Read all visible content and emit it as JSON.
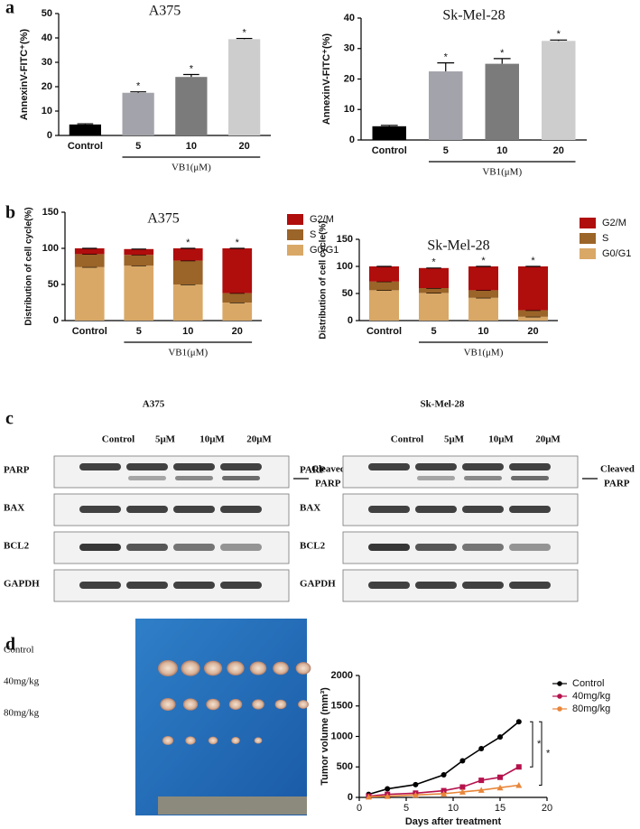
{
  "panel_labels": [
    "a",
    "b",
    "c",
    "d"
  ],
  "chart_data": [
    {
      "type": "bar",
      "title": "A375",
      "ylabel": "AnnexinV-FITC⁺(%)",
      "categories": [
        "Control",
        "5",
        "10",
        "20"
      ],
      "group_label": "VB1(μM)",
      "values": [
        4.5,
        17.5,
        24,
        39.5
      ],
      "errors": [
        0.3,
        0.4,
        1,
        0.3
      ],
      "colors": [
        "#000000",
        "#a3a3ab",
        "#7b7b7b",
        "#cdcdcd"
      ],
      "annotations": [
        null,
        "*",
        "*",
        "*"
      ],
      "ylim": [
        0,
        50
      ],
      "yticks": [
        0,
        10,
        20,
        30,
        40,
        50
      ]
    },
    {
      "type": "bar",
      "title": "Sk-Mel-28",
      "ylabel": "AnnexinV-FITC⁺(%)",
      "categories": [
        "Control",
        "5",
        "10",
        "20"
      ],
      "group_label": "VB1(μM)",
      "values": [
        4.5,
        22.5,
        25,
        32.5
      ],
      "errors": [
        0.3,
        2.8,
        1.7,
        0.3
      ],
      "colors": [
        "#000000",
        "#a3a3ab",
        "#7b7b7b",
        "#cdcdcd"
      ],
      "annotations": [
        null,
        "*",
        "*",
        "*"
      ],
      "ylim": [
        0,
        40
      ],
      "yticks": [
        0,
        10,
        20,
        30,
        40
      ]
    },
    {
      "type": "stacked_bar",
      "title": "A375",
      "ylabel": "Distribution of cell cycle(%)",
      "categories": [
        "Control",
        "5",
        "10",
        "20"
      ],
      "group_label": "VB1(μM)",
      "series": [
        {
          "name": "G0/G1",
          "color": "#d9a867",
          "values": [
            74,
            76,
            50,
            25
          ]
        },
        {
          "name": "S",
          "color": "#9b6428",
          "values": [
            18,
            15,
            33,
            13
          ]
        },
        {
          "name": "G2/M",
          "color": "#b00d0d",
          "values": [
            8,
            8,
            17,
            62
          ]
        }
      ],
      "annotations": [
        null,
        null,
        "*",
        "*"
      ],
      "ylim": [
        0,
        150
      ],
      "yticks": [
        0,
        50,
        100,
        150
      ]
    },
    {
      "type": "stacked_bar",
      "title": "Sk-Mel-28",
      "ylabel": "Distribution of cell cycle(%)",
      "categories": [
        "Control",
        "5",
        "10",
        "20"
      ],
      "group_label": "VB1(μM)",
      "series": [
        {
          "name": "G0/G1",
          "color": "#d9a867",
          "values": [
            56,
            51,
            42,
            7
          ]
        },
        {
          "name": "S",
          "color": "#9b6428",
          "values": [
            16,
            9,
            14,
            12
          ]
        },
        {
          "name": "G2/M",
          "color": "#b00d0d",
          "values": [
            28,
            37,
            44,
            81
          ]
        }
      ],
      "annotations": [
        null,
        "*",
        "*",
        "*"
      ],
      "ylim": [
        0,
        150
      ],
      "yticks": [
        0,
        50,
        100,
        150
      ]
    },
    {
      "type": "line",
      "ylabel": "Tumor volume (mm³)",
      "xlabel": "Days after treatment",
      "x": [
        1,
        3,
        6,
        9,
        11,
        13,
        15,
        17
      ],
      "series": [
        {
          "name": "Control",
          "color": "#000000",
          "values": [
            50,
            140,
            210,
            370,
            600,
            800,
            990,
            1240
          ]
        },
        {
          "name": "40mg/kg",
          "color": "#b5124d",
          "values": [
            20,
            50,
            70,
            110,
            170,
            280,
            330,
            500
          ]
        },
        {
          "name": "80mg/kg",
          "color": "#e8863a",
          "values": [
            10,
            20,
            40,
            60,
            90,
            120,
            160,
            200
          ]
        }
      ],
      "annotations": [
        "*",
        "*"
      ],
      "xlim": [
        0,
        20
      ],
      "xticks": [
        0,
        5,
        10,
        15,
        20
      ],
      "ylim": [
        0,
        2000
      ],
      "yticks": [
        0,
        500,
        1000,
        1500,
        2000
      ]
    }
  ],
  "blots": [
    {
      "title": "A375",
      "columns": [
        "Control",
        "5μM",
        "10μM",
        "20μM"
      ],
      "rows": [
        "PARP",
        "BAX",
        "BCL2",
        "GAPDH"
      ],
      "side_label": [
        "Cleaved",
        "PARP"
      ]
    },
    {
      "title": "Sk-Mel-28",
      "columns": [
        "Control",
        "5μM",
        "10μM",
        "20μM"
      ],
      "rows": [
        "PARP",
        "BAX",
        "BCL2",
        "GAPDH"
      ],
      "side_label": [
        "Cleaved",
        "PARP"
      ]
    }
  ],
  "photo": {
    "rows": [
      "Control",
      "40mg/kg",
      "80mg/kg"
    ]
  }
}
